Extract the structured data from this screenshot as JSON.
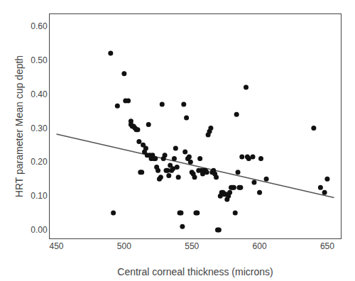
{
  "chart_data": {
    "type": "scatter",
    "xlabel": "Central corneal thickness (microns)",
    "ylabel": "HRT parameter Mean cup depth",
    "series": [
      {
        "type": "scatter",
        "marker": "circle",
        "color": "#111111",
        "x": [
          490,
          492,
          495,
          500,
          501,
          503,
          505,
          505,
          506,
          507,
          508,
          509,
          510,
          511,
          512,
          513,
          514,
          515,
          516,
          517,
          518,
          519,
          520,
          521,
          522,
          523,
          524,
          525,
          526,
          527,
          528,
          529,
          530,
          531,
          532,
          533,
          534,
          535,
          536,
          537,
          538,
          539,
          540,
          541,
          542,
          543,
          544,
          545,
          546,
          547,
          548,
          549,
          550,
          551,
          552,
          553,
          554,
          555,
          556,
          557,
          558,
          559,
          560,
          561,
          562,
          563,
          564,
          565,
          566,
          567,
          568,
          569,
          570,
          571,
          572,
          573,
          574,
          575,
          576,
          577,
          578,
          579,
          580,
          581,
          582,
          583,
          584,
          585,
          586,
          587,
          590,
          591,
          592,
          595,
          596,
          600,
          601,
          605,
          640,
          645,
          648,
          650
        ],
        "values": [
          0.52,
          0.05,
          0.365,
          0.46,
          0.38,
          0.38,
          0.32,
          0.31,
          0.305,
          0.305,
          0.3,
          0.295,
          0.295,
          0.26,
          0.17,
          0.17,
          0.25,
          0.23,
          0.24,
          0.22,
          0.31,
          0.22,
          0.21,
          0.22,
          0.21,
          0.21,
          0.185,
          0.175,
          0.15,
          0.155,
          0.37,
          0.21,
          0.22,
          0.175,
          0.175,
          0.16,
          0.19,
          0.175,
          0.18,
          0.21,
          0.24,
          0.185,
          0.155,
          0.05,
          0.05,
          0.01,
          0.37,
          0.23,
          0.33,
          0.21,
          0.215,
          0.2,
          0.17,
          0.165,
          0.155,
          0.05,
          0.05,
          0.175,
          0.21,
          0.175,
          0.165,
          0.175,
          0.175,
          0.17,
          0.28,
          0.29,
          0.3,
          0.17,
          0.175,
          0.165,
          0.155,
          0.0,
          0.0,
          0.1,
          0.11,
          0.11,
          0.105,
          0.105,
          0.09,
          0.1,
          0.11,
          0.125,
          0.125,
          0.125,
          0.05,
          0.34,
          0.17,
          0.125,
          0.125,
          0.215,
          0.42,
          0.215,
          0.21,
          0.215,
          0.14,
          0.11,
          0.21,
          0.15,
          0.3,
          0.125,
          0.11,
          0.15
        ]
      },
      {
        "type": "line",
        "line_style": "solid",
        "color": "#555555",
        "x": [
          450,
          655
        ],
        "values": [
          0.282,
          0.095
        ]
      }
    ],
    "xlim": [
      445,
      660
    ],
    "ylim": [
      -0.025,
      0.635
    ],
    "xticks": [
      450,
      500,
      550,
      600,
      650
    ],
    "yticks": [
      {
        "value": 0.0,
        "label": "0.00"
      },
      {
        "value": 0.1,
        "label": "0.10"
      },
      {
        "value": 0.2,
        "label": "0.20"
      },
      {
        "value": 0.3,
        "label": "0.30"
      },
      {
        "value": 0.4,
        "label": "0.40"
      },
      {
        "value": 0.5,
        "label": "0.50"
      },
      {
        "value": 0.6,
        "label": "0.60"
      }
    ],
    "grid": false
  }
}
